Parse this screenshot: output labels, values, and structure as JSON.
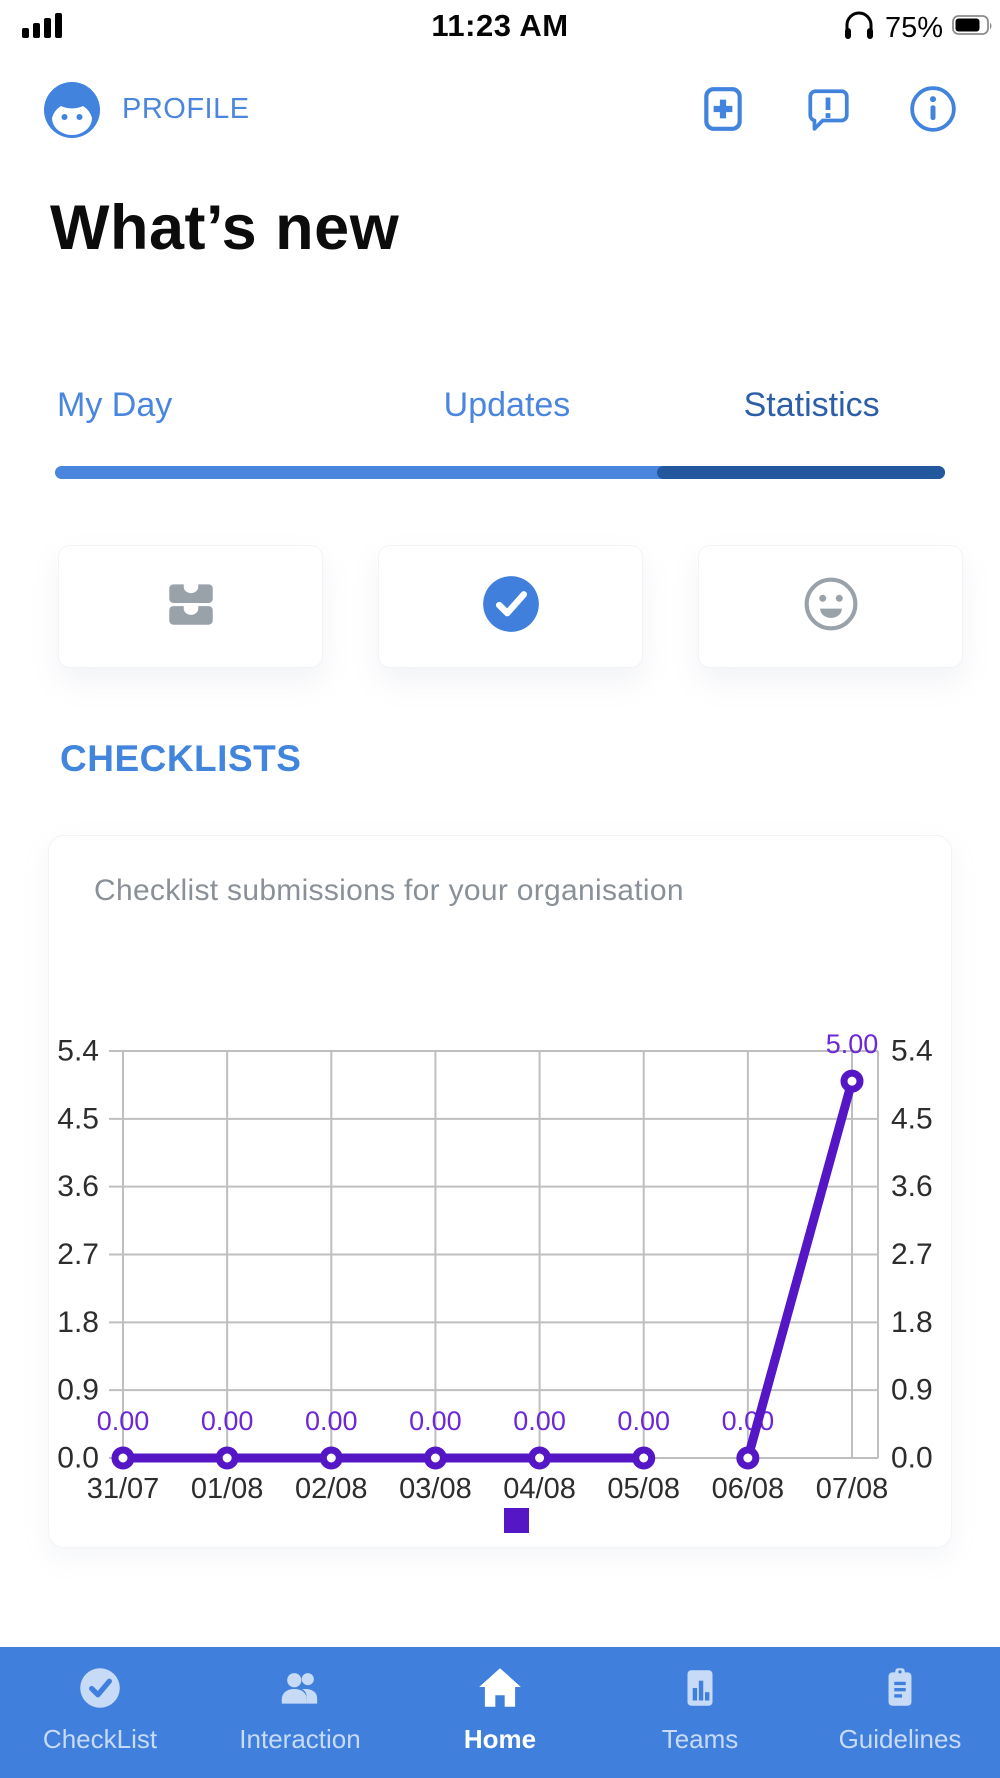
{
  "status_bar": {
    "time": "11:23 AM",
    "battery_percent": "75%",
    "icons": [
      "signal-bars-icon",
      "headphones-icon",
      "battery-icon"
    ]
  },
  "header": {
    "profile_label": "PROFILE",
    "icons": [
      "avatar-face-icon",
      "add-square-icon",
      "chat-alert-icon",
      "info-icon"
    ],
    "accent_color": "#4a86dd"
  },
  "title": "What’s new",
  "tabs": [
    {
      "label": "My Day",
      "active": false
    },
    {
      "label": "Updates",
      "active": false
    },
    {
      "label": "Statistics",
      "active": true
    }
  ],
  "tab_colors": {
    "inactive": "#4a86dd",
    "active": "#2d5fa9",
    "track": "#4a86dd",
    "track_active": "#23579e"
  },
  "quick_cards": [
    {
      "icon": "inbox-trays-icon"
    },
    {
      "icon": "check-circle-icon"
    },
    {
      "icon": "smiley-icon"
    }
  ],
  "section": {
    "heading": "CHECKLISTS"
  },
  "chart_card": {
    "title": "Checklist submissions for your organisation"
  },
  "chart_data": {
    "type": "line",
    "title": "Checklist submissions for your organisation",
    "categories": [
      "31/07",
      "01/08",
      "02/08",
      "03/08",
      "04/08",
      "05/08",
      "06/08",
      "07/08"
    ],
    "series": [
      {
        "name": "Checklist submissions",
        "values": [
          0,
          0,
          0,
          0,
          0,
          0,
          0,
          5
        ]
      }
    ],
    "point_labels": [
      "0.00",
      "0.00",
      "0.00",
      "0.00",
      "0.00",
      "0.00",
      "0.00",
      "5.00"
    ],
    "segments": [
      [
        0,
        5
      ],
      [
        6,
        7
      ]
    ],
    "y_ticks": [
      0.0,
      0.9,
      1.8,
      2.7,
      3.6,
      4.5,
      5.4
    ],
    "ylim": [
      0,
      5.4
    ],
    "xlabel": "",
    "ylabel": "",
    "grid": true,
    "legend_marker": "square",
    "legend_position": "bottom-center",
    "line_color": "#5517c5",
    "label_color": "#6c28d6",
    "grid_color": "#bfbfbf",
    "axis_color": "#2d2d2d"
  },
  "bottom_nav": {
    "bg_color": "#4080dc",
    "inactive_color": "#c7daf6",
    "active_color": "#ffffff",
    "items": [
      {
        "label": "CheckList",
        "icon": "check-circle-icon",
        "active": false
      },
      {
        "label": "Interaction",
        "icon": "people-icon",
        "active": false
      },
      {
        "label": "Home",
        "icon": "home-icon",
        "active": true
      },
      {
        "label": "Teams",
        "icon": "bar-chart-icon",
        "active": false
      },
      {
        "label": "Guidelines",
        "icon": "clipboard-icon",
        "active": false
      }
    ]
  }
}
